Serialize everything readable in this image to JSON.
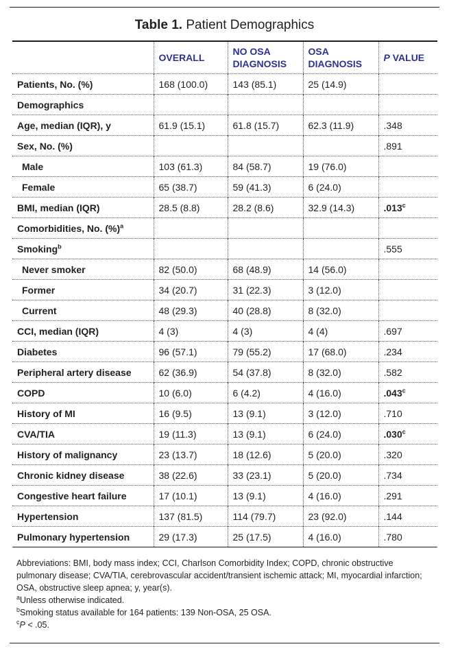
{
  "table_title_bold": "Table 1.",
  "table_title_rest": " Patient Demographics",
  "headers": {
    "overall": "OVERALL",
    "no_osa": "NO OSA DIAGNOSIS",
    "osa": "OSA DIAGNOSIS",
    "p_italic": "P",
    "p_rest": " VALUE"
  },
  "rows": [
    {
      "label": "Patients, No. (%)",
      "overall": "168 (100.0)",
      "no_osa": "143 (85.1)",
      "osa": "25 (14.9)",
      "p": ""
    },
    {
      "label": "Demographics",
      "overall": "",
      "no_osa": "",
      "osa": "",
      "p": ""
    },
    {
      "label": "Age, median (IQR), y",
      "overall": "61.9 (15.1)",
      "no_osa": "61.8 (15.7)",
      "osa": "62.3 (11.9)",
      "p": ".348"
    },
    {
      "label": "Sex, No. (%)",
      "overall": "",
      "no_osa": "",
      "osa": "",
      "p": ".891"
    },
    {
      "label": "Male",
      "overall": "103 (61.3)",
      "no_osa": "84 (58.7)",
      "osa": "19 (76.0)",
      "p": ""
    },
    {
      "label": "Female",
      "overall": "65 (38.7)",
      "no_osa": "59 (41.3)",
      "osa": "6 (24.0)",
      "p": ""
    },
    {
      "label": "BMI, median (IQR)",
      "overall": "28.5 (8.8)",
      "no_osa": "28.2 (8.6)",
      "osa": "32.9 (14.3)",
      "p": ".013",
      "p_sup": "c"
    },
    {
      "label": "Comorbidities, No. (%)",
      "label_sup": "a",
      "overall": "",
      "no_osa": "",
      "osa": "",
      "p": ""
    },
    {
      "label": "Smoking",
      "label_sup": "b",
      "overall": "",
      "no_osa": "",
      "osa": "",
      "p": ".555"
    },
    {
      "label": "Never smoker",
      "overall": "82 (50.0)",
      "no_osa": "68 (48.9)",
      "osa": "14 (56.0)",
      "p": ""
    },
    {
      "label": "Former",
      "overall": "34 (20.7)",
      "no_osa": "31 (22.3)",
      "osa": "3 (12.0)",
      "p": ""
    },
    {
      "label": "Current",
      "overall": "48 (29.3)",
      "no_osa": "40 (28.8)",
      "osa": "8 (32.0)",
      "p": ""
    },
    {
      "label": "CCI, median (IQR)",
      "overall": "4 (3)",
      "no_osa": "4 (3)",
      "osa": "4 (4)",
      "p": ".697"
    },
    {
      "label": "Diabetes",
      "overall": "96 (57.1)",
      "no_osa": "79 (55.2)",
      "osa": "17 (68.0)",
      "p": ".234"
    },
    {
      "label": "Peripheral artery disease",
      "overall": "62 (36.9)",
      "no_osa": "54 (37.8)",
      "osa": "8 (32.0)",
      "p": ".582"
    },
    {
      "label": "COPD",
      "overall": "10 (6.0)",
      "no_osa": "6 (4.2)",
      "osa": "4 (16.0)",
      "p": ".043",
      "p_sup": "c"
    },
    {
      "label": "History of MI",
      "overall": "16 (9.5)",
      "no_osa": "13 (9.1)",
      "osa": "3 (12.0)",
      "p": ".710"
    },
    {
      "label": "CVA/TIA",
      "overall": "19 (11.3)",
      "no_osa": "13 (9.1)",
      "osa": "6 (24.0)",
      "p": ".030",
      "p_sup": "c"
    },
    {
      "label": "History of malignancy",
      "overall": "23 (13.7)",
      "no_osa": "18 (12.6)",
      "osa": "5 (20.0)",
      "p": ".320"
    },
    {
      "label": "Chronic kidney disease",
      "overall": "38 (22.6)",
      "no_osa": "33 (23.1)",
      "osa": "5 (20.0)",
      "p": ".734"
    },
    {
      "label": "Congestive heart failure",
      "overall": "17 (10.1)",
      "no_osa": "13 (9.1)",
      "osa": "4 (16.0)",
      "p": ".291"
    },
    {
      "label": "Hypertension",
      "overall": "137 (81.5)",
      "no_osa": "114 (79.7)",
      "osa": "23 (92.0)",
      "p": ".144"
    },
    {
      "label": "Pulmonary hypertension",
      "overall": "29 (17.3)",
      "no_osa": "25 (17.5)",
      "osa": "4 (16.0)",
      "p": ".780"
    }
  ],
  "notes": {
    "abbreviations": "Abbreviations: BMI, body mass index; CCI, Charlson Comorbidity Index; COPD, chronic obstructive pulmonary disease; CVA/TIA, cerebrovascular accident/transient ischemic attack; MI, myocardial infarction; OSA, obstructive sleep apnea; y, year(s).",
    "a_mark": "a",
    "a_text": "Unless otherwise indicated.",
    "b_mark": "b",
    "b_text": "Smoking status available for 164 patients: 139 Non-OSA, 25 OSA.",
    "c_mark": "c",
    "c_p": "P",
    "c_text": " < .05."
  }
}
